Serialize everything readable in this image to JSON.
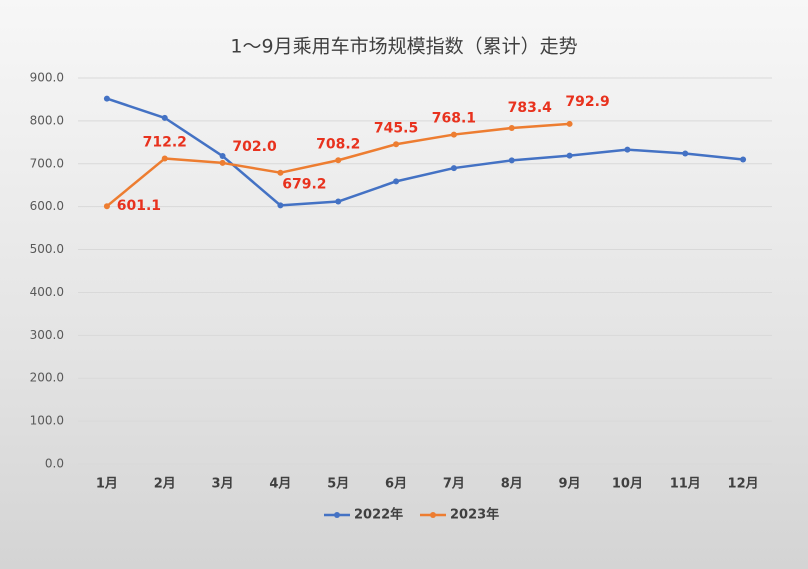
{
  "chart_data": {
    "type": "line",
    "title": "1～9月乘用车市场规模指数（累计）走势",
    "categories": [
      "1月",
      "2月",
      "3月",
      "4月",
      "5月",
      "6月",
      "7月",
      "8月",
      "9月",
      "10月",
      "11月",
      "12月"
    ],
    "series": [
      {
        "name": "2022年",
        "color": "#4472c4",
        "values": [
          852,
          807,
          718,
          603,
          612,
          659,
          690,
          708,
          719,
          733,
          724,
          710
        ]
      },
      {
        "name": "2023年",
        "color": "#ed7d31",
        "values": [
          601.1,
          712.2,
          702.0,
          679.2,
          708.2,
          745.5,
          768.1,
          783.4,
          792.9,
          null,
          null,
          null
        ],
        "value_labels": [
          "601.1",
          "712.2",
          "702.0",
          "679.2",
          "708.2",
          "745.5",
          "768.1",
          "783.4",
          "792.9",
          null,
          null,
          null
        ]
      }
    ],
    "ylim": [
      0,
      900
    ],
    "yticks": [
      {
        "value": 0,
        "label": "0.0"
      },
      {
        "value": 100,
        "label": "100.0"
      },
      {
        "value": 200,
        "label": "200.0"
      },
      {
        "value": 300,
        "label": "300.0"
      },
      {
        "value": 400,
        "label": "400.0"
      },
      {
        "value": 500,
        "label": "500.0"
      },
      {
        "value": 600,
        "label": "600.0"
      },
      {
        "value": 700,
        "label": "700.0"
      },
      {
        "value": 800,
        "label": "800.0"
      },
      {
        "value": 900,
        "label": "900.0"
      }
    ],
    "grid": true,
    "legend": "bottom"
  }
}
